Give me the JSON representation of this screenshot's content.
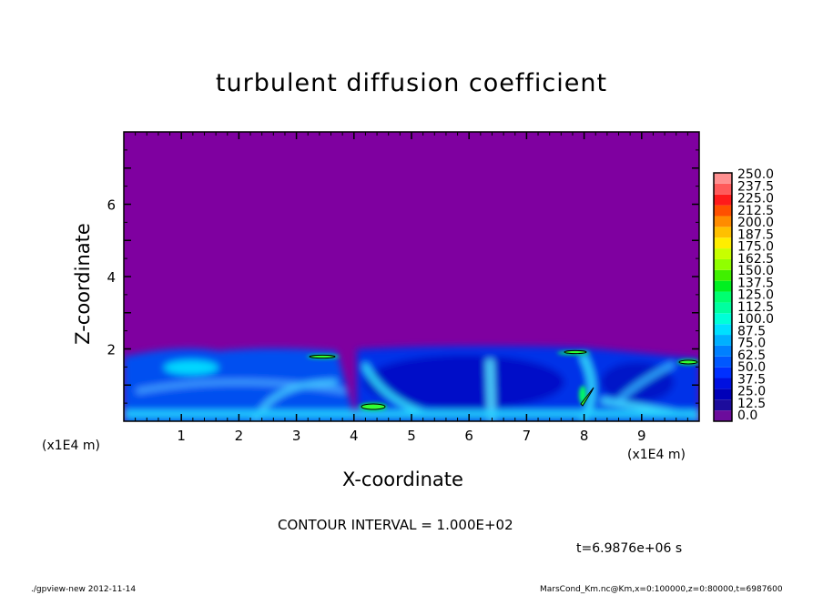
{
  "chart_data": {
    "type": "heatmap",
    "title": "turbulent diffusion coefficient",
    "xlabel": "X-coordinate",
    "ylabel": "Z-coordinate",
    "x_unit": "(x1E4 m)",
    "z_unit": "(x1E4 m)",
    "xlim": [
      0,
      10
    ],
    "ylim": [
      0,
      8
    ],
    "x_ticks": [
      "1",
      "2",
      "3",
      "4",
      "5",
      "6",
      "7",
      "8",
      "9"
    ],
    "y_ticks": [
      "2",
      "4",
      "6"
    ],
    "colorbar": {
      "labels": [
        "0.0",
        "12.5",
        "25.0",
        "37.5",
        "50.0",
        "62.5",
        "75.0",
        "87.5",
        "100.0",
        "112.5",
        "125.0",
        "137.5",
        "150.0",
        "162.5",
        "175.0",
        "187.5",
        "200.0",
        "212.5",
        "225.0",
        "237.5",
        "250.0"
      ],
      "colors": [
        "#6c0c9c",
        "#1c0c9c",
        "#0000b8",
        "#0010e0",
        "#0030ff",
        "#0058ff",
        "#0080ff",
        "#00b0ff",
        "#00e0ff",
        "#00ffd8",
        "#00ffa0",
        "#00ff70",
        "#00f020",
        "#40f000",
        "#90ff00",
        "#c8ff00",
        "#ffee00",
        "#ffc000",
        "#ff8c00",
        "#ff5000",
        "#ff1a1a",
        "#ff5a5a",
        "#ff9090"
      ]
    },
    "background_color": "#7f00a0",
    "contour_interval": "CONTOUR INTERVAL = 1.000E+02",
    "time": "t=6.9876e+06 s"
  },
  "footer": {
    "left": "./gpview-new   2012-11-14",
    "right": "MarsCond_Km.nc@Km,x=0:100000,z=0:80000,t=6987600"
  }
}
